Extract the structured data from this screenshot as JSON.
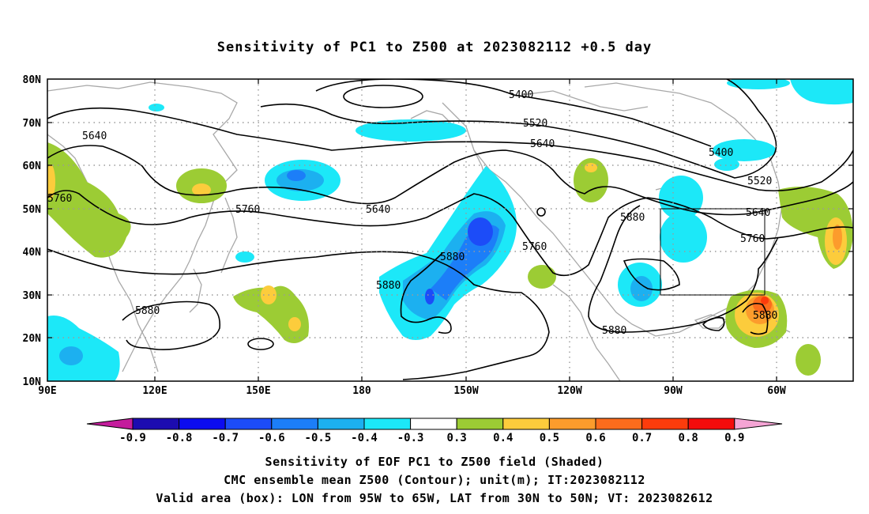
{
  "title": "Sensitivity of PC1 to Z500 at 2023082112 +0.5 day",
  "lat_labels": [
    "80N",
    "70N",
    "60N",
    "50N",
    "40N",
    "30N",
    "20N",
    "10N"
  ],
  "lon_labels": [
    "90E",
    "120E",
    "150E",
    "180",
    "150W",
    "120W",
    "90W",
    "60W"
  ],
  "contour_labels": [
    "5400",
    "5400",
    "5520",
    "5520",
    "5640",
    "5640",
    "5640",
    "5640",
    "5760",
    "5760",
    "5760",
    "5760",
    "5880",
    "5880",
    "5880",
    "5880",
    "5880",
    "5880"
  ],
  "colorbar": {
    "ticks": [
      "-0.9",
      "-0.8",
      "-0.7",
      "-0.6",
      "-0.5",
      "-0.4",
      "-0.3",
      "0.3",
      "0.4",
      "0.5",
      "0.6",
      "0.7",
      "0.8",
      "0.9"
    ],
    "colors": [
      "#1c0cb0",
      "#0c0cf0",
      "#1c4cf8",
      "#1c7ef8",
      "#1cb0f0",
      "#1ce8f8",
      "#ffffff",
      "#9ccc34",
      "#fccc3c",
      "#fc9c2c",
      "#fc6c1c",
      "#fc3c0c",
      "#f40c0c"
    ],
    "left_end": "#c41c9c",
    "right_end": "#f4a4d4"
  },
  "captions": {
    "line1": "Sensitivity of EOF PC1 to Z500 field (Shaded)",
    "line2": "CMC ensemble mean Z500 (Contour); unit(m); IT:2023082112",
    "line3": "Valid area (box): LON from 95W to 65W, LAT from 30N to 50N; VT: 2023082612"
  }
}
